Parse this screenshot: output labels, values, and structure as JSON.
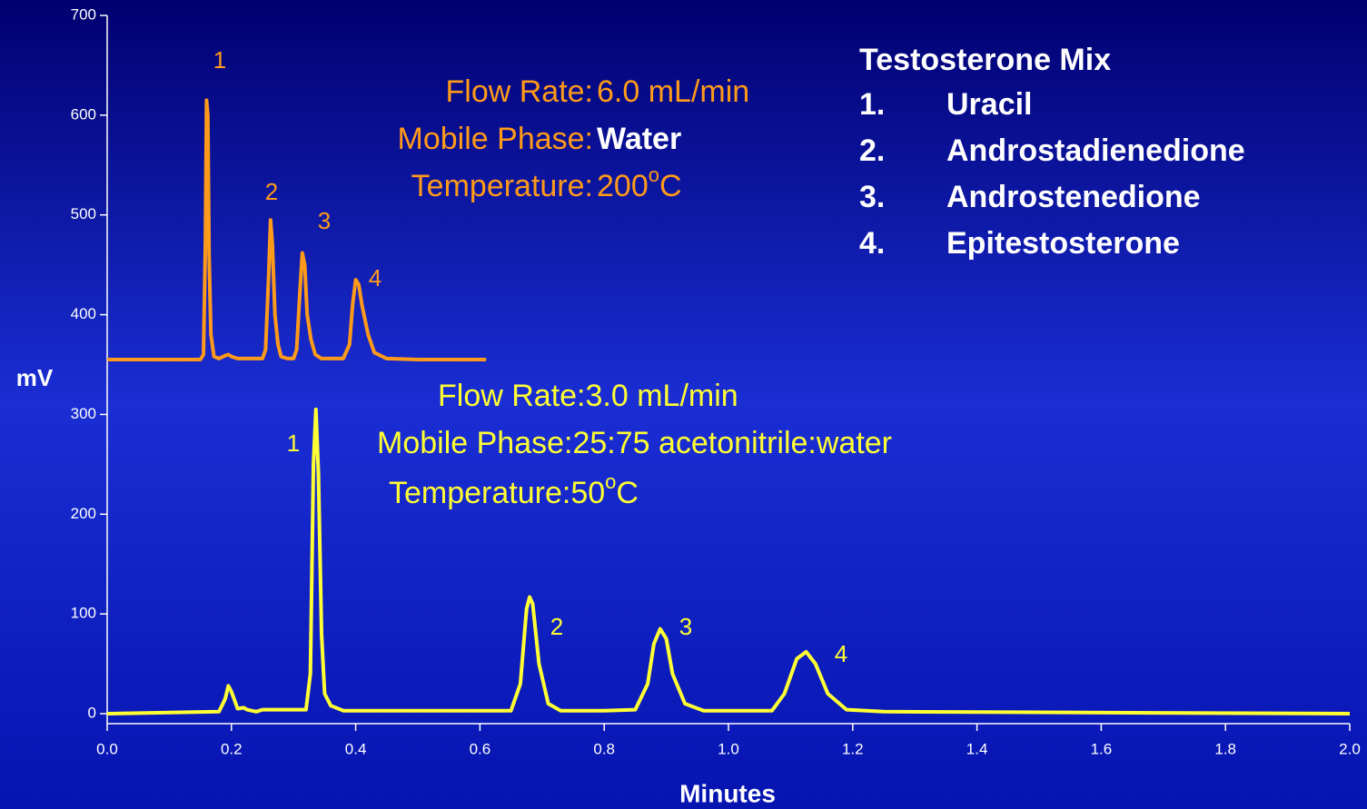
{
  "chart_data": {
    "type": "line",
    "xlabel": "Minutes",
    "ylabel": "mV",
    "xlim": [
      0,
      2
    ],
    "ylim": [
      -10,
      700
    ],
    "xticks": [
      {
        "value": 0,
        "label": "0.0"
      },
      0.2,
      0.4,
      0.6,
      0.8,
      {
        "value": 1,
        "label": "1.0"
      },
      1.2,
      1.4,
      1.6,
      1.8,
      {
        "value": 2,
        "label": "2.0"
      }
    ],
    "yticks": [
      0,
      100,
      200,
      300,
      400,
      500,
      600,
      700
    ],
    "series": [
      {
        "color": "#ff9a1a",
        "x": [
          0,
          0.15,
          0.155,
          0.158,
          0.16,
          0.162,
          0.164,
          0.167,
          0.172,
          0.18,
          0.19,
          0.195,
          0.2,
          0.21,
          0.22,
          0.25,
          0.255,
          0.26,
          0.263,
          0.266,
          0.27,
          0.275,
          0.28,
          0.29,
          0.3,
          0.305,
          0.31,
          0.314,
          0.318,
          0.322,
          0.328,
          0.335,
          0.345,
          0.36,
          0.38,
          0.39,
          0.395,
          0.4,
          0.405,
          0.41,
          0.42,
          0.43,
          0.45,
          0.5,
          0.61
        ],
        "values": [
          355,
          355,
          360,
          470,
          615,
          600,
          460,
          380,
          358,
          356,
          359,
          360,
          358,
          356,
          356,
          356,
          365,
          440,
          495,
          470,
          400,
          370,
          358,
          356,
          356,
          365,
          420,
          462,
          450,
          400,
          375,
          360,
          356,
          356,
          356,
          370,
          410,
          435,
          430,
          410,
          380,
          362,
          356,
          355,
          355
        ],
        "peak_labels": [
          "1",
          "2",
          "3",
          "4"
        ],
        "conditions": [
          {
            "label": "Flow Rate:",
            "value": "6.0 mL/min"
          },
          {
            "label": "Mobile Phase:",
            "value": "Water"
          },
          {
            "label": "Temperature:",
            "value": "200",
            "sup": "o",
            "unit": "C"
          }
        ]
      },
      {
        "color": "#ffff33",
        "x": [
          0,
          0.18,
          0.19,
          0.195,
          0.2,
          0.21,
          0.22,
          0.225,
          0.24,
          0.25,
          0.26,
          0.32,
          0.327,
          0.332,
          0.336,
          0.34,
          0.345,
          0.35,
          0.36,
          0.38,
          0.6,
          0.65,
          0.665,
          0.675,
          0.68,
          0.685,
          0.695,
          0.71,
          0.73,
          0.8,
          0.85,
          0.87,
          0.88,
          0.89,
          0.9,
          0.91,
          0.93,
          0.96,
          1.0,
          1.07,
          1.09,
          1.11,
          1.125,
          1.14,
          1.16,
          1.19,
          1.25,
          2.0
        ],
        "values": [
          0,
          2,
          15,
          28,
          22,
          5,
          6,
          4,
          2,
          4,
          4,
          4,
          40,
          250,
          305,
          240,
          80,
          20,
          8,
          3,
          3,
          3,
          30,
          105,
          117,
          110,
          50,
          10,
          3,
          3,
          4,
          30,
          70,
          85,
          75,
          40,
          10,
          3,
          3,
          3,
          20,
          55,
          62,
          50,
          20,
          4,
          2,
          0
        ],
        "peak_labels": [
          "1",
          "2",
          "3",
          "4"
        ],
        "conditions": [
          {
            "text": "Flow Rate:3.0 mL/min"
          },
          {
            "text": "Mobile Phase:25:75 acetonitrile:water"
          },
          {
            "text": "Temperature:50",
            "sup": "o",
            "unit": "C"
          }
        ]
      }
    ],
    "legend_box": {
      "title": "Testosterone Mix",
      "items": [
        {
          "num": "1.",
          "name": "Uracil"
        },
        {
          "num": "2.",
          "name": "Androstadienedione"
        },
        {
          "num": "3.",
          "name": "Androstenedione"
        },
        {
          "num": "4.",
          "name": "Epitestosterone"
        }
      ]
    }
  }
}
